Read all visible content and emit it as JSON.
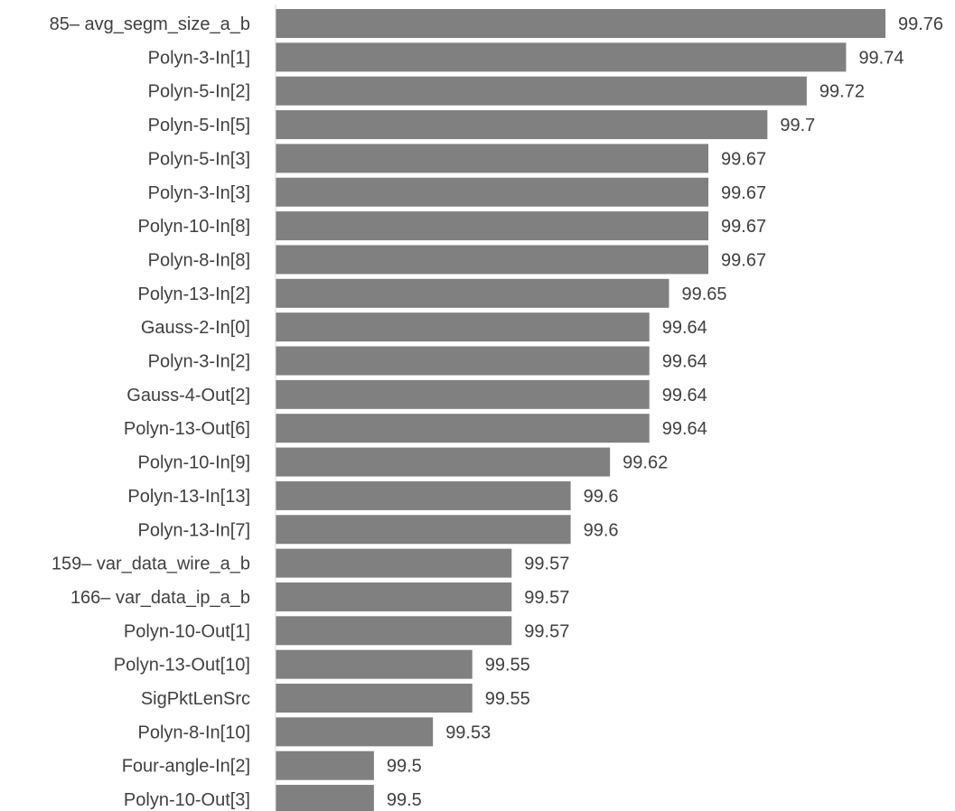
{
  "chart_data": {
    "type": "bar",
    "orientation": "horizontal",
    "title": "",
    "xlabel": "",
    "ylabel": "",
    "grid": false,
    "legend": "none",
    "bar_color": "#808080",
    "xlim": [
      99.45,
      99.76
    ],
    "categories": [
      "85– avg_segm_size_a_b",
      "Polyn-3-In[1]",
      "Polyn-5-In[2]",
      "Polyn-5-In[5]",
      "Polyn-5-In[3]",
      "Polyn-3-In[3]",
      "Polyn-10-In[8]",
      "Polyn-8-In[8]",
      "Polyn-13-In[2]",
      "Gauss-2-In[0]",
      "Polyn-3-In[2]",
      "Gauss-4-Out[2]",
      "Polyn-13-Out[6]",
      "Polyn-10-In[9]",
      "Polyn-13-In[13]",
      "Polyn-13-In[7]",
      "159– var_data_wire_a_b",
      "166– var_data_ip_a_b",
      "Polyn-10-Out[1]",
      "Polyn-13-Out[10]",
      "SigPktLenSrc",
      "Polyn-8-In[10]",
      "Four-angle-In[2]",
      "Polyn-10-Out[3]"
    ],
    "values": [
      99.76,
      99.74,
      99.72,
      99.7,
      99.67,
      99.67,
      99.67,
      99.67,
      99.65,
      99.64,
      99.64,
      99.64,
      99.64,
      99.62,
      99.6,
      99.6,
      99.57,
      99.57,
      99.57,
      99.55,
      99.55,
      99.53,
      99.5,
      99.5
    ],
    "value_labels": [
      "99.76",
      "99.74",
      "99.72",
      "99.7",
      "99.67",
      "99.67",
      "99.67",
      "99.67",
      "99.65",
      "99.64",
      "99.64",
      "99.64",
      "99.64",
      "99.62",
      "99.6",
      "99.6",
      "99.57",
      "99.57",
      "99.57",
      "99.55",
      "99.55",
      "99.53",
      "99.5",
      "99.5"
    ]
  }
}
